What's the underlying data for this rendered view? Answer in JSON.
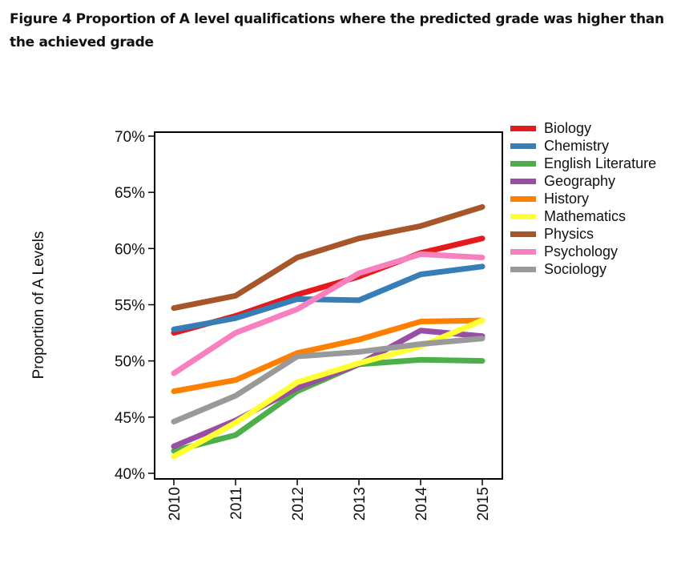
{
  "title": "Figure 4 Proportion of A level qualifications where the predicted grade was higher than the achieved grade",
  "chart_data": {
    "type": "line",
    "title": "Figure 4 Proportion of A level qualifications where the predicted grade was higher than the achieved grade",
    "xlabel": "",
    "ylabel": "Proportion of A Levels",
    "x": [
      "2010",
      "2011",
      "2012",
      "2013",
      "2014",
      "2015"
    ],
    "ylim": [
      40,
      70
    ],
    "yticks": [
      "40%",
      "45%",
      "50%",
      "55%",
      "60%",
      "65%",
      "70%"
    ],
    "grid": false,
    "legend": "right",
    "series": [
      {
        "name": "Biology",
        "color": "#e41a1c",
        "values": [
          52.5,
          54.0,
          55.9,
          57.5,
          59.6,
          60.9
        ]
      },
      {
        "name": "Chemistry",
        "color": "#377eb8",
        "values": [
          52.8,
          53.8,
          55.5,
          55.4,
          57.7,
          58.4
        ]
      },
      {
        "name": "English Literature",
        "color": "#4daf4a",
        "values": [
          42.0,
          43.4,
          47.3,
          49.7,
          50.1,
          50.0
        ]
      },
      {
        "name": "Geography",
        "color": "#984ea3",
        "values": [
          42.4,
          44.7,
          47.6,
          49.7,
          52.7,
          52.2
        ]
      },
      {
        "name": "History",
        "color": "#ff7f00",
        "values": [
          47.3,
          48.3,
          50.7,
          51.9,
          53.5,
          53.6
        ]
      },
      {
        "name": "Mathematics",
        "color": "#ffff33",
        "values": [
          41.5,
          44.5,
          48.1,
          49.8,
          51.3,
          53.6
        ]
      },
      {
        "name": "Physics",
        "color": "#a65628",
        "values": [
          54.7,
          55.8,
          59.2,
          60.9,
          62.0,
          63.7
        ]
      },
      {
        "name": "Psychology",
        "color": "#f781bf",
        "values": [
          48.9,
          52.5,
          54.6,
          57.8,
          59.5,
          59.2
        ]
      },
      {
        "name": "Sociology",
        "color": "#999999",
        "values": [
          44.6,
          46.9,
          50.4,
          50.8,
          51.5,
          52.0
        ]
      }
    ]
  }
}
